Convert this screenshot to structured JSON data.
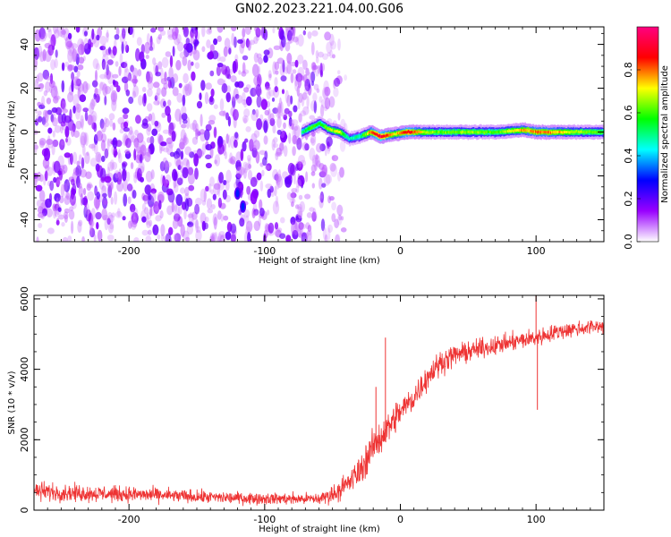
{
  "title": "GN02.2023.221.04.00.G06",
  "chart_data": [
    {
      "type": "heatmap",
      "xlabel": "Height of straight line (km)",
      "ylabel": "Frequency (Hz)",
      "xlim": [
        -270,
        150
      ],
      "ylim": [
        -50,
        48
      ],
      "x_ticks": [
        -200,
        -100,
        0,
        100
      ],
      "x_tick_labels": [
        "-200",
        "-100",
        "0",
        "100"
      ],
      "y_ticks": [
        -40,
        -20,
        0,
        20,
        40
      ],
      "y_tick_labels": [
        "-40",
        "-20",
        "0",
        "20",
        "40"
      ],
      "colorbar": {
        "label": "Normalized spectral amplitude",
        "range": [
          0,
          1
        ],
        "ticks": [
          0.0,
          0.2,
          0.4,
          0.6,
          0.8
        ],
        "tick_labels": [
          "0.0",
          "0.2",
          "0.4",
          "0.6",
          "0.8"
        ],
        "colors": [
          "#ffffff",
          "#9900ff",
          "#0000ff",
          "#00ffff",
          "#00ff00",
          "#ffff00",
          "#ff0000",
          "#ff0080"
        ]
      },
      "noise_region": {
        "x": [
          -270,
          -40
        ],
        "freq": [
          -50,
          48
        ],
        "amplitude_range": [
          0.05,
          0.25
        ]
      },
      "ridge": [
        {
          "x": -73,
          "y": 0,
          "amp": 0.5
        },
        {
          "x": -66,
          "y": 2,
          "amp": 0.6
        },
        {
          "x": -60,
          "y": 4,
          "amp": 0.55
        },
        {
          "x": -52,
          "y": 1,
          "amp": 0.65
        },
        {
          "x": -45,
          "y": 0,
          "amp": 0.7
        },
        {
          "x": -38,
          "y": -3,
          "amp": 0.45
        },
        {
          "x": -30,
          "y": -2,
          "amp": 0.5
        },
        {
          "x": -22,
          "y": 0,
          "amp": 0.8
        },
        {
          "x": -15,
          "y": -2,
          "amp": 0.95
        },
        {
          "x": -5,
          "y": -1,
          "amp": 0.7
        },
        {
          "x": 5,
          "y": 0,
          "amp": 0.9
        },
        {
          "x": 15,
          "y": 0,
          "amp": 0.7
        },
        {
          "x": 30,
          "y": 0,
          "amp": 0.6
        },
        {
          "x": 50,
          "y": 0,
          "amp": 0.65
        },
        {
          "x": 70,
          "y": 0,
          "amp": 0.6
        },
        {
          "x": 90,
          "y": 1,
          "amp": 0.75
        },
        {
          "x": 100,
          "y": 0,
          "amp": 0.8
        },
        {
          "x": 115,
          "y": 0,
          "amp": 0.75
        },
        {
          "x": 130,
          "y": 0,
          "amp": 0.65
        },
        {
          "x": 150,
          "y": 0,
          "amp": 0.6
        }
      ],
      "blobs": [
        {
          "x": -120,
          "y": -28,
          "amp": 0.3
        },
        {
          "x": -116,
          "y": -34,
          "amp": 0.3
        }
      ]
    },
    {
      "type": "line",
      "xlabel": "Height of straight line (km)",
      "ylabel": "SNR (10 * v/v)",
      "xlim": [
        -270,
        150
      ],
      "ylim": [
        0,
        6100
      ],
      "x_ticks": [
        -200,
        -100,
        0,
        100
      ],
      "x_tick_labels": [
        "-200",
        "-100",
        "0",
        "100"
      ],
      "y_ticks": [
        0,
        2000,
        4000,
        6000
      ],
      "y_tick_labels": [
        "0",
        "2000",
        "4000",
        "6000"
      ],
      "color": "#ee3333",
      "x": [
        -270,
        -250,
        -225,
        -200,
        -175,
        -150,
        -125,
        -100,
        -80,
        -60,
        -50,
        -40,
        -30,
        -20,
        -10,
        0,
        10,
        20,
        30,
        40,
        60,
        80,
        100,
        120,
        150
      ],
      "y": [
        550,
        500,
        470,
        450,
        420,
        380,
        350,
        330,
        320,
        320,
        450,
        700,
        1100,
        1800,
        2300,
        2800,
        3200,
        3800,
        4200,
        4400,
        4600,
        4750,
        4900,
        5100,
        5250
      ],
      "noise_amplitude": [
        450,
        400,
        380,
        360,
        330,
        300,
        280,
        270,
        270,
        280,
        420,
        550,
        700,
        800,
        750,
        700,
        650,
        600,
        550,
        500,
        450,
        420,
        420,
        380,
        350
      ],
      "spikes": [
        {
          "x": -18,
          "y": 3500
        },
        {
          "x": -11,
          "y": 4900
        },
        {
          "x": 100,
          "y": 6100
        },
        {
          "x": 101,
          "y": 2850
        }
      ]
    }
  ]
}
